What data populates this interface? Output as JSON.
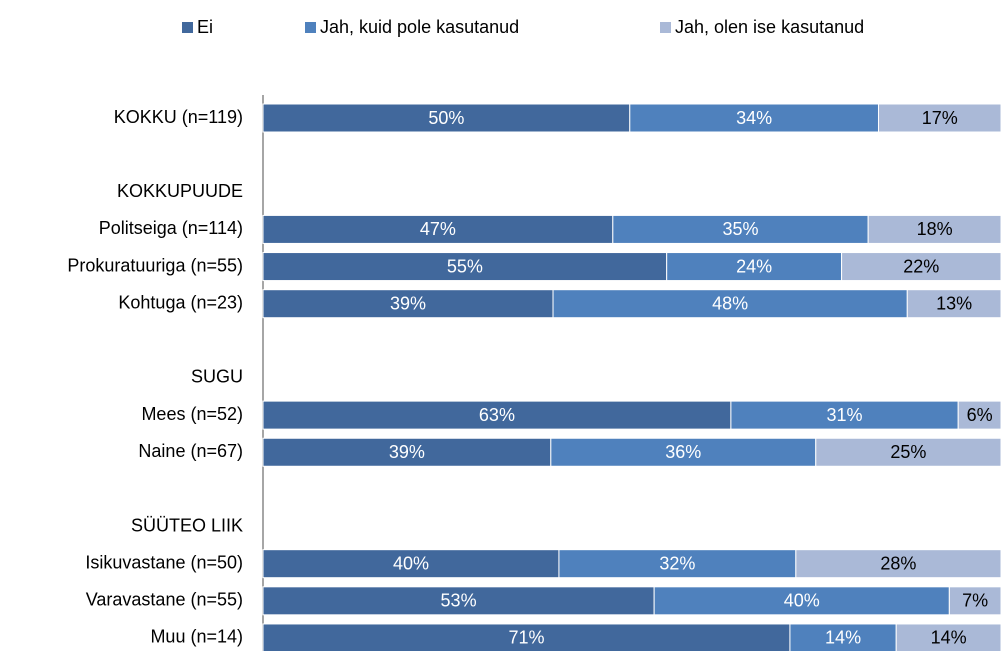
{
  "chart_data": {
    "type": "stacked-barh",
    "categories": [
      "KOKKU (n=119)",
      null,
      "KOKKUPUUDE",
      "Politseiga (n=114)",
      "Prokuratuuriga (n=55)",
      "Kohtuga (n=23)",
      null,
      "SUGU",
      "Mees (n=52)",
      "Naine (n=67)",
      null,
      "SÜÜTEO LIIK",
      "Isikuvastane (n=50)",
      "Varavastane (n=55)",
      "Muu (n=14)"
    ],
    "xlim": [
      0,
      100
    ],
    "legend": "top",
    "series": [
      {
        "name": "Ei",
        "color": "#41689c",
        "label_color": "#ffffff",
        "values": [
          49.7,
          null,
          null,
          47.4,
          54.7,
          39.3,
          null,
          null,
          63.4,
          39.0,
          null,
          null,
          40.1,
          53.0,
          71.4
        ],
        "value_labels": [
          "50%",
          null,
          null,
          "47%",
          "55%",
          "39%",
          null,
          null,
          "63%",
          "39%",
          null,
          null,
          "40%",
          "53%",
          "71%"
        ]
      },
      {
        "name": "Jah, kuid pole kasutanud",
        "color": "#4f81bd",
        "label_color": "#ffffff",
        "values": [
          33.7,
          null,
          null,
          34.6,
          23.7,
          48.0,
          null,
          null,
          30.8,
          35.9,
          null,
          null,
          32.1,
          40.0,
          14.4
        ],
        "value_labels": [
          "34%",
          null,
          null,
          "35%",
          "24%",
          "48%",
          null,
          null,
          "31%",
          "36%",
          null,
          null,
          "32%",
          "40%",
          "14%"
        ]
      },
      {
        "name": "Jah, olen ise kasutanud",
        "color": "#aab9d7",
        "label_color": "#000000",
        "values": [
          16.6,
          null,
          null,
          18.0,
          21.6,
          12.7,
          null,
          null,
          5.8,
          25.1,
          null,
          null,
          27.8,
          7.0,
          14.2
        ],
        "value_labels": [
          "17%",
          null,
          null,
          "18%",
          "22%",
          "13%",
          null,
          null,
          "6%",
          "25%",
          null,
          null,
          "28%",
          "7%",
          "14%"
        ]
      }
    ]
  }
}
